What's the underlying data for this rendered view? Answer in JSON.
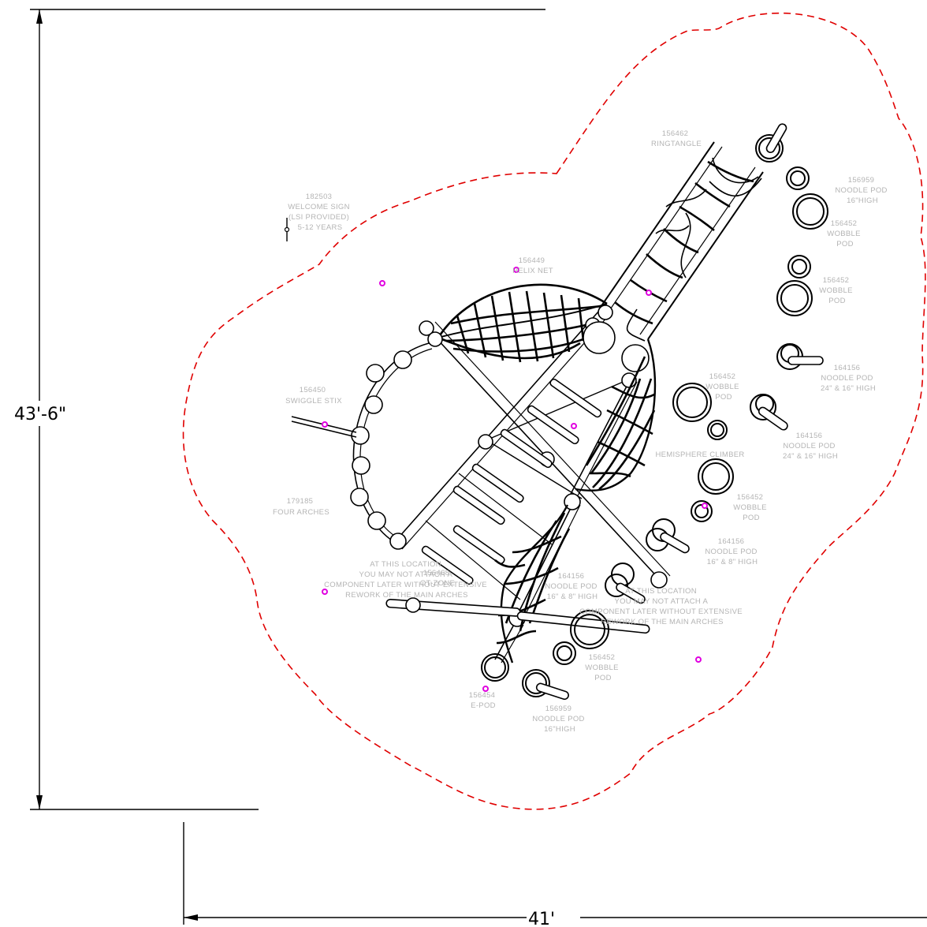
{
  "dimensions": {
    "height": "43'-6\"",
    "width": "41'"
  },
  "colors": {
    "boundary": "#e00000",
    "ink": "#000000",
    "label": "#b4b4b4",
    "marker": "#e000e0"
  },
  "labels": {
    "ringtangle": [
      "156462",
      "RINGTANGLE"
    ],
    "noodle_top": [
      "156959",
      "NOODLE POD",
      "16\"HIGH"
    ],
    "wobble_top": [
      "156452",
      "WOBBLE",
      "POD"
    ],
    "wobble_right": [
      "156452",
      "WOBBLE",
      "POD"
    ],
    "welcome": [
      "182503",
      "WELCOME SIGN",
      "(LSI PROVIDED)",
      "5-12 YEARS"
    ],
    "helix": [
      "156449",
      "HELIX NET"
    ],
    "wobble_mid": [
      "156452",
      "WOBBLE",
      "POD"
    ],
    "noodle_right1": [
      "164156",
      "NOODLE POD",
      "24\" & 16\" HIGH"
    ],
    "noodle_right2": [
      "164156",
      "NOODLE POD",
      "24\" & 16\" HIGH"
    ],
    "swiggle": [
      "156450",
      "SWIGGLE STIX"
    ],
    "hemisphere": [
      "HEMISPHERE CLIMBER"
    ],
    "four_arches": [
      "179185",
      "FOUR ARCHES"
    ],
    "wobble_lower": [
      "156452",
      "WOBBLE",
      "POD"
    ],
    "noodle_lower": [
      "164156",
      "NOODLE POD",
      "16\" & 8\" HIGH"
    ],
    "note_left": [
      "AT THIS LOCATION",
      "YOU MAY NOT ATTACH A",
      "COMPONENT LATER WITHOUT EXTENSIVE",
      "REWORK OF THE MAIN ARCHES"
    ],
    "otzone": [
      "156468",
      "OT-ZONE"
    ],
    "noodle_center": [
      "164156",
      "NOODLE POD",
      "16\" & 8\" HIGH"
    ],
    "note_right": [
      "AT THIS LOCATION",
      "YOU MAY NOT ATTACH A",
      "COMPONENT LATER WITHOUT EXTENSIVE",
      "REWORK OF THE MAIN ARCHES"
    ],
    "wobble_bottom": [
      "156452",
      "WOBBLE",
      "POD"
    ],
    "epod": [
      "156454",
      "E-POD"
    ],
    "noodle_bottom": [
      "156959",
      "NOODLE POD",
      "16\"HIGH"
    ]
  }
}
